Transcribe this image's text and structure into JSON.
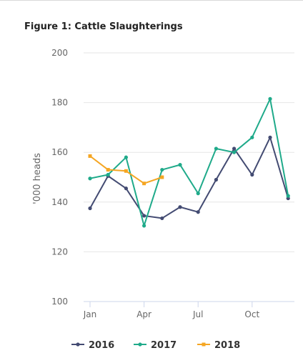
{
  "chart_data": {
    "type": "line",
    "title": "Figure 1: Cattle Slaughterings",
    "ylabel": "'000 heads",
    "xlabel": "",
    "ylim": [
      100,
      200
    ],
    "yticks": [
      100,
      120,
      140,
      160,
      180,
      200
    ],
    "xtick_labels": [
      "Jan",
      "Apr",
      "Jul",
      "Oct"
    ],
    "xtick_months": [
      1,
      4,
      7,
      10
    ],
    "grid": true,
    "legend_position": "bottom",
    "series": [
      {
        "name": "2016",
        "color": "#434b72",
        "marker": "circle",
        "x": [
          1,
          2,
          3,
          4,
          5,
          6,
          7,
          8,
          9,
          10,
          11,
          12
        ],
        "values": [
          137.5,
          150.5,
          145.5,
          134.5,
          133.5,
          138,
          136,
          149,
          161.5,
          151,
          166,
          141.5
        ]
      },
      {
        "name": "2017",
        "color": "#1faa8a",
        "marker": "circle",
        "x": [
          1,
          2,
          3,
          4,
          5,
          6,
          7,
          8,
          9,
          10,
          11,
          12
        ],
        "values": [
          149.5,
          151,
          158,
          130.5,
          153,
          155,
          143.5,
          161.5,
          160,
          166,
          181.5,
          142.5
        ]
      },
      {
        "name": "2018",
        "color": "#f5a623",
        "marker": "square",
        "x": [
          1,
          2,
          3,
          4,
          5
        ],
        "values": [
          158.5,
          153,
          152.5,
          147.5,
          150
        ]
      }
    ]
  }
}
